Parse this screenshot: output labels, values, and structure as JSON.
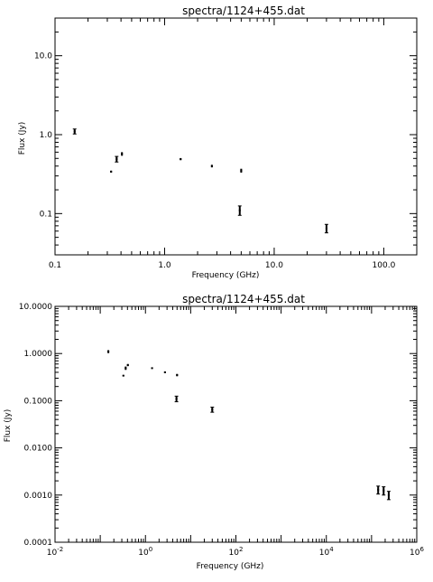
{
  "chart_data": [
    {
      "type": "scatter",
      "title": "spectra/1124+455.dat",
      "xlabel": "Frequency (GHz)",
      "ylabel": "Flux (Jy)",
      "xscale": "log",
      "yscale": "log",
      "xlim": [
        0.1,
        200
      ],
      "ylim": [
        0.03,
        30
      ],
      "xticks": [
        {
          "value": 0.1,
          "label": "0.1"
        },
        {
          "value": 1,
          "label": "1.0"
        },
        {
          "value": 10,
          "label": "10.0"
        },
        {
          "value": 100,
          "label": "100.0"
        }
      ],
      "yticks": [
        {
          "value": 0.1,
          "label": "0.1"
        },
        {
          "value": 1,
          "label": "1.0"
        },
        {
          "value": 10,
          "label": "10.0"
        }
      ],
      "points": [
        {
          "x": 0.151,
          "y": 1.1,
          "err": 0.08
        },
        {
          "x": 0.325,
          "y": 0.34,
          "err": 0.01
        },
        {
          "x": 0.365,
          "y": 0.49,
          "err": 0.04
        },
        {
          "x": 0.408,
          "y": 0.57,
          "err": 0.03
        },
        {
          "x": 1.4,
          "y": 0.49,
          "err": 0.015
        },
        {
          "x": 2.7,
          "y": 0.4,
          "err": 0.015
        },
        {
          "x": 4.85,
          "y": 0.11,
          "err": 0.015
        },
        {
          "x": 5.0,
          "y": 0.35,
          "err": 0.02
        },
        {
          "x": 30.0,
          "y": 0.065,
          "err": 0.008
        }
      ]
    },
    {
      "type": "scatter",
      "title": "spectra/1124+455.dat",
      "xlabel": "Frequency (GHz)",
      "ylabel": "Flux (Jy)",
      "xscale": "log",
      "yscale": "log",
      "xlim": [
        0.01,
        1000000
      ],
      "ylim": [
        0.0001,
        10
      ],
      "xticks": [
        {
          "value": 0.01,
          "label": "10",
          "exp": "-2"
        },
        {
          "value": 1,
          "label": "10",
          "exp": "0"
        },
        {
          "value": 100,
          "label": "10",
          "exp": "2"
        },
        {
          "value": 10000,
          "label": "10",
          "exp": "4"
        },
        {
          "value": 1000000,
          "label": "10",
          "exp": "6"
        }
      ],
      "yticks": [
        {
          "value": 0.0001,
          "label": "0.0001"
        },
        {
          "value": 0.001,
          "label": "0.0010"
        },
        {
          "value": 0.01,
          "label": "0.0100"
        },
        {
          "value": 0.1,
          "label": "0.1000"
        },
        {
          "value": 1,
          "label": "1.0000"
        },
        {
          "value": 10,
          "label": "10.0000"
        }
      ],
      "points": [
        {
          "x": 0.151,
          "y": 1.1,
          "err": 0.08
        },
        {
          "x": 0.325,
          "y": 0.34,
          "err": 0.01
        },
        {
          "x": 0.365,
          "y": 0.49,
          "err": 0.04
        },
        {
          "x": 0.408,
          "y": 0.57,
          "err": 0.03
        },
        {
          "x": 1.4,
          "y": 0.49,
          "err": 0.015
        },
        {
          "x": 2.7,
          "y": 0.4,
          "err": 0.015
        },
        {
          "x": 4.85,
          "y": 0.11,
          "err": 0.015
        },
        {
          "x": 5.0,
          "y": 0.35,
          "err": 0.02
        },
        {
          "x": 30.0,
          "y": 0.065,
          "err": 0.008
        },
        {
          "x": 140000,
          "y": 0.0013,
          "err": 0.00025
        },
        {
          "x": 185000,
          "y": 0.00125,
          "err": 0.00025
        },
        {
          "x": 240000,
          "y": 0.001,
          "err": 0.0002
        }
      ]
    }
  ]
}
